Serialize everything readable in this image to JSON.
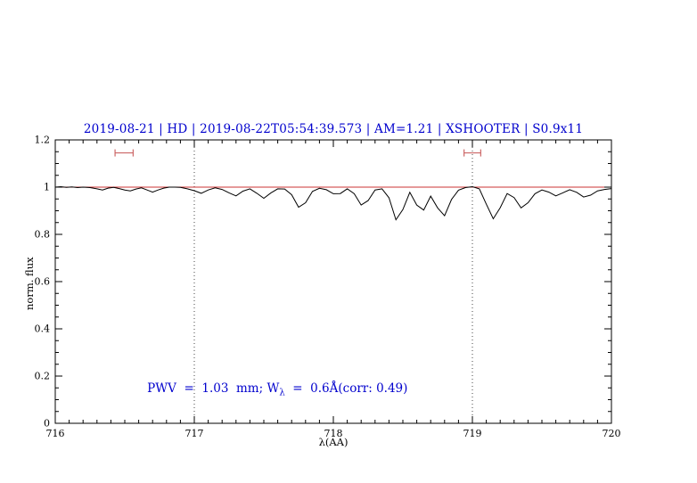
{
  "title": "2019-08-21 | HD | 2019-08-22T05:54:39.573 | AM=1.21 | XSHOOTER | S0.9x11",
  "annotation": {
    "prefix": "PWV  =  1.03  mm; W",
    "subscript": "λ",
    "suffix": "  =  0.6Å(corr: 0.49)"
  },
  "colors": {
    "title_blue": "#0000cd",
    "spectrum_black": "#000000",
    "continuum_red": "#cc3333",
    "marker_red": "#cc6666",
    "dotted_line": "#444444"
  },
  "axes": {
    "x": {
      "label": "λ(AA)",
      "range": [
        716,
        720
      ],
      "major_ticks": [
        716,
        717,
        718,
        719,
        720
      ],
      "tick_labels": [
        "716",
        "717",
        "718",
        "719",
        "720"
      ],
      "minor_step": 0.1
    },
    "y": {
      "label": "norm. flux",
      "range": [
        0,
        1.2
      ],
      "major_ticks": [
        0,
        0.2,
        0.4,
        0.6,
        0.8,
        1,
        1.2
      ],
      "tick_labels": [
        "0",
        "0.2",
        "0.4",
        "0.6",
        "0.8",
        "1",
        "1.2"
      ],
      "minor_step": 0.05
    }
  },
  "chart_data": {
    "type": "line",
    "title": "2019-08-21 | HD | 2019-08-22T05:54:39.573 | AM=1.21 | XSHOOTER | S0.9x11",
    "xlabel": "λ(AA)",
    "ylabel": "norm. flux",
    "xlim": [
      716,
      720
    ],
    "ylim": [
      0,
      1.2
    ],
    "grid": "dotted vertical lines at x=717 and x=719",
    "legend": "none",
    "vlines": [
      717,
      719
    ],
    "range_markers": [
      {
        "x1": 716.43,
        "x2": 716.56,
        "y": 1.145
      },
      {
        "x1": 718.94,
        "x2": 719.06,
        "y": 1.145
      }
    ],
    "series": [
      {
        "name": "continuum",
        "color": "#cc3333",
        "points": [
          [
            716,
            1.0
          ],
          [
            720,
            1.0
          ]
        ]
      },
      {
        "name": "observed-spectrum",
        "color": "#000000",
        "points": [
          [
            716.0,
            1.0
          ],
          [
            716.04,
            1.002
          ],
          [
            716.08,
            0.999
          ],
          [
            716.12,
            1.001
          ],
          [
            716.16,
            0.998
          ],
          [
            716.2,
            1.0
          ],
          [
            716.25,
            0.998
          ],
          [
            716.3,
            0.993
          ],
          [
            716.34,
            0.988
          ],
          [
            716.38,
            0.996
          ],
          [
            716.42,
            0.999
          ],
          [
            716.46,
            0.994
          ],
          [
            716.5,
            0.988
          ],
          [
            716.54,
            0.984
          ],
          [
            716.58,
            0.992
          ],
          [
            716.62,
            0.997
          ],
          [
            716.66,
            0.988
          ],
          [
            716.7,
            0.979
          ],
          [
            716.74,
            0.988
          ],
          [
            716.78,
            0.996
          ],
          [
            716.82,
            1.0
          ],
          [
            716.86,
            1.0
          ],
          [
            716.9,
            0.999
          ],
          [
            716.95,
            0.993
          ],
          [
            717.0,
            0.985
          ],
          [
            717.05,
            0.974
          ],
          [
            717.1,
            0.988
          ],
          [
            717.15,
            0.997
          ],
          [
            717.2,
            0.99
          ],
          [
            717.25,
            0.976
          ],
          [
            717.3,
            0.963
          ],
          [
            717.35,
            0.983
          ],
          [
            717.4,
            0.993
          ],
          [
            717.45,
            0.974
          ],
          [
            717.5,
            0.953
          ],
          [
            717.55,
            0.975
          ],
          [
            717.6,
            0.993
          ],
          [
            717.65,
            0.992
          ],
          [
            717.7,
            0.968
          ],
          [
            717.75,
            0.915
          ],
          [
            717.8,
            0.934
          ],
          [
            717.85,
            0.982
          ],
          [
            717.9,
            0.995
          ],
          [
            717.95,
            0.989
          ],
          [
            718.0,
            0.972
          ],
          [
            718.05,
            0.973
          ],
          [
            718.1,
            0.993
          ],
          [
            718.15,
            0.972
          ],
          [
            718.2,
            0.924
          ],
          [
            718.25,
            0.943
          ],
          [
            718.3,
            0.988
          ],
          [
            718.35,
            0.993
          ],
          [
            718.4,
            0.955
          ],
          [
            718.45,
            0.862
          ],
          [
            718.5,
            0.905
          ],
          [
            718.55,
            0.978
          ],
          [
            718.6,
            0.924
          ],
          [
            718.65,
            0.903
          ],
          [
            718.7,
            0.962
          ],
          [
            718.75,
            0.912
          ],
          [
            718.8,
            0.879
          ],
          [
            718.85,
            0.948
          ],
          [
            718.9,
            0.987
          ],
          [
            718.95,
            0.998
          ],
          [
            719.0,
            1.002
          ],
          [
            719.05,
            0.993
          ],
          [
            719.1,
            0.928
          ],
          [
            719.15,
            0.866
          ],
          [
            719.2,
            0.913
          ],
          [
            719.25,
            0.973
          ],
          [
            719.3,
            0.956
          ],
          [
            719.35,
            0.912
          ],
          [
            719.4,
            0.934
          ],
          [
            719.45,
            0.972
          ],
          [
            719.5,
            0.988
          ],
          [
            719.55,
            0.979
          ],
          [
            719.6,
            0.963
          ],
          [
            719.65,
            0.976
          ],
          [
            719.7,
            0.989
          ],
          [
            719.75,
            0.978
          ],
          [
            719.8,
            0.958
          ],
          [
            719.85,
            0.966
          ],
          [
            719.9,
            0.984
          ],
          [
            719.95,
            0.99
          ],
          [
            720.0,
            0.994
          ]
        ]
      }
    ]
  }
}
